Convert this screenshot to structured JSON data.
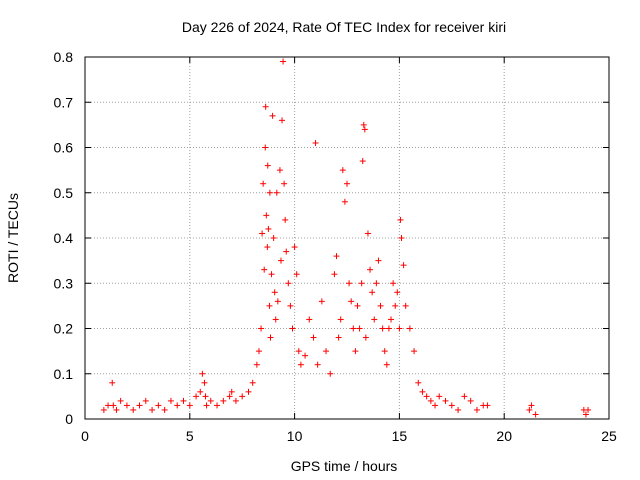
{
  "chart_data": {
    "type": "scatter",
    "title": "Day 226 of 2024, Rate Of TEC Index for receiver kiri",
    "xlabel": "GPS time / hours",
    "ylabel": "ROTI / TECUs",
    "xlim": [
      0,
      25
    ],
    "ylim": [
      0,
      0.8
    ],
    "xticks": [
      0,
      5,
      10,
      15,
      20,
      25
    ],
    "yticks": [
      0,
      0.1,
      0.2,
      0.3,
      0.4,
      0.5,
      0.6,
      0.7,
      0.8
    ],
    "grid": true,
    "marker": "+",
    "color": "#ff0000",
    "series": [
      {
        "x": [
          0.9,
          1.1,
          1.3,
          1.35,
          1.5,
          1.7,
          2.0,
          2.3,
          2.6,
          2.9,
          3.2,
          3.5,
          3.8,
          4.1,
          4.4,
          4.7,
          5.0,
          5.3,
          5.5,
          5.6,
          5.7,
          5.75,
          5.8,
          6.0,
          6.3,
          6.6,
          6.9,
          7.0,
          7.2,
          7.5,
          7.8,
          8.0,
          8.2,
          8.3,
          8.4,
          8.45,
          8.5,
          8.55,
          8.6,
          8.62,
          8.65,
          8.7,
          8.72,
          8.75,
          8.8,
          8.82,
          8.85,
          8.9,
          8.95,
          9.0,
          9.05,
          9.1,
          9.15,
          9.2,
          9.3,
          9.35,
          9.4,
          9.45,
          9.5,
          9.55,
          9.6,
          9.7,
          9.8,
          9.9,
          10.0,
          10.1,
          10.2,
          10.3,
          10.5,
          10.7,
          10.9,
          11.0,
          11.1,
          11.3,
          11.5,
          11.7,
          11.9,
          12.0,
          12.1,
          12.2,
          12.3,
          12.4,
          12.5,
          12.6,
          12.7,
          12.8,
          12.9,
          13.0,
          13.1,
          13.2,
          13.25,
          13.3,
          13.35,
          13.4,
          13.5,
          13.6,
          13.7,
          13.8,
          13.9,
          14.0,
          14.1,
          14.2,
          14.3,
          14.4,
          14.5,
          14.6,
          14.7,
          14.8,
          14.9,
          15.0,
          15.05,
          15.1,
          15.2,
          15.3,
          15.5,
          15.7,
          15.9,
          16.1,
          16.3,
          16.5,
          16.7,
          16.9,
          17.2,
          17.5,
          17.8,
          18.1,
          18.4,
          18.7,
          19.0,
          19.2,
          21.2,
          21.3,
          21.5,
          23.8,
          23.9,
          24.0
        ],
        "y": [
          0.02,
          0.03,
          0.08,
          0.03,
          0.02,
          0.04,
          0.03,
          0.02,
          0.03,
          0.04,
          0.02,
          0.03,
          0.02,
          0.04,
          0.03,
          0.04,
          0.03,
          0.05,
          0.06,
          0.1,
          0.08,
          0.05,
          0.03,
          0.04,
          0.03,
          0.04,
          0.05,
          0.06,
          0.04,
          0.05,
          0.06,
          0.08,
          0.12,
          0.15,
          0.2,
          0.41,
          0.52,
          0.33,
          0.6,
          0.69,
          0.45,
          0.38,
          0.56,
          0.42,
          0.25,
          0.5,
          0.18,
          0.32,
          0.67,
          0.4,
          0.28,
          0.22,
          0.5,
          0.26,
          0.55,
          0.35,
          0.66,
          0.79,
          0.52,
          0.44,
          0.37,
          0.3,
          0.25,
          0.2,
          0.38,
          0.32,
          0.15,
          0.12,
          0.14,
          0.22,
          0.18,
          0.61,
          0.12,
          0.26,
          0.15,
          0.1,
          0.32,
          0.36,
          0.18,
          0.22,
          0.55,
          0.48,
          0.52,
          0.3,
          0.26,
          0.2,
          0.15,
          0.25,
          0.2,
          0.3,
          0.57,
          0.65,
          0.64,
          0.18,
          0.41,
          0.33,
          0.28,
          0.22,
          0.3,
          0.35,
          0.25,
          0.2,
          0.15,
          0.12,
          0.2,
          0.22,
          0.3,
          0.25,
          0.28,
          0.2,
          0.44,
          0.4,
          0.34,
          0.25,
          0.2,
          0.15,
          0.08,
          0.06,
          0.05,
          0.04,
          0.03,
          0.05,
          0.04,
          0.03,
          0.02,
          0.05,
          0.04,
          0.02,
          0.03,
          0.03,
          0.02,
          0.03,
          0.01,
          0.02,
          0.01,
          0.02
        ]
      }
    ]
  }
}
